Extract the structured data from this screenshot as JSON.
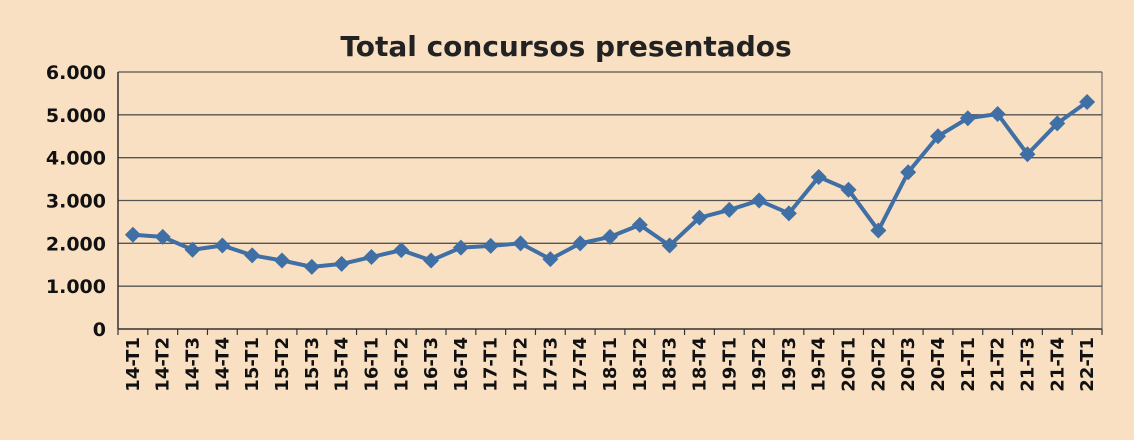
{
  "chart_data": {
    "type": "line",
    "title": "Total concursos presentados",
    "xlabel": "",
    "ylabel": "",
    "ylim": [
      0,
      6000
    ],
    "yticks": [
      "0",
      "1.000",
      "2.000",
      "3.000",
      "4.000",
      "5.000",
      "6.000"
    ],
    "grid": true,
    "legend": "none",
    "colors": {
      "background": "#f9e0c3",
      "line": "#3f6fa5",
      "grid": "#555555",
      "axis": "#333333"
    },
    "categories": [
      "14-T1",
      "14-T2",
      "14-T3",
      "14-T4",
      "15-T1",
      "15-T2",
      "15-T3",
      "15-T4",
      "16-T1",
      "16-T2",
      "16-T3",
      "16-T4",
      "17-T1",
      "17-T2",
      "17-T3",
      "17-T4",
      "18-T1",
      "18-T2",
      "18-T3",
      "18-T4",
      "19-T1",
      "19-T2",
      "19-T3",
      "19-T4",
      "20-T1",
      "20-T2",
      "20-T3",
      "20-T4",
      "21-T1",
      "21-T2",
      "21-T3",
      "21-T4",
      "22-T1"
    ],
    "series": [
      {
        "values": [
          2200,
          2150,
          1850,
          1950,
          1720,
          1600,
          1450,
          1520,
          1680,
          1840,
          1600,
          1900,
          1940,
          2000,
          1630,
          2000,
          2150,
          2430,
          1950,
          2600,
          2780,
          3000,
          2700,
          3550,
          3250,
          2300,
          3660,
          4500,
          4920,
          5020,
          4080,
          4800,
          5300
        ]
      }
    ]
  }
}
